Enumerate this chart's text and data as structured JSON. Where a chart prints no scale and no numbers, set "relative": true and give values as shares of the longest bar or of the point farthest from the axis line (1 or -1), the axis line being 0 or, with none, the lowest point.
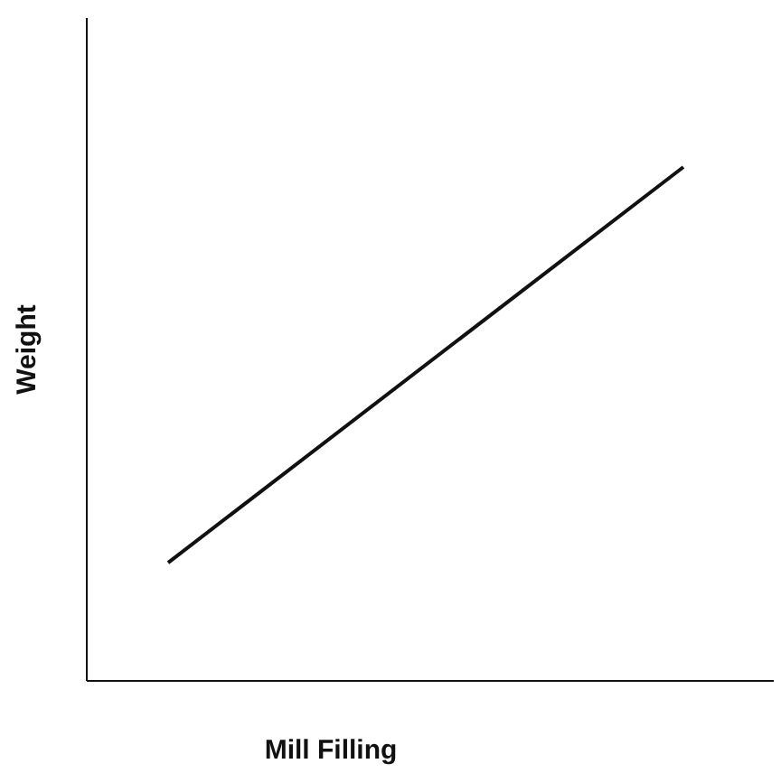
{
  "chart_data": {
    "type": "line",
    "xlabel": "Mill Filling",
    "ylabel": "Weight",
    "relative": true,
    "categories": [
      null,
      null
    ],
    "series": [
      {
        "color": "#111111",
        "values": [
          0.23,
          1
        ]
      }
    ],
    "marker": "none",
    "line_style": "solid"
  }
}
